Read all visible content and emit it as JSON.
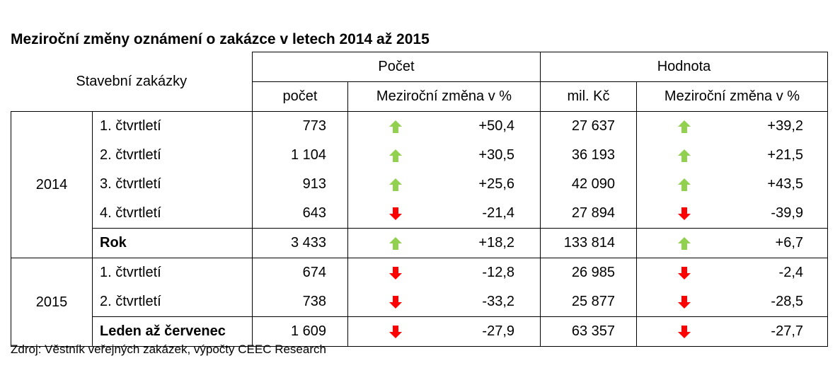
{
  "title": "Meziroční změny oznámení o zakázce v letech 2014 až 2015",
  "source": "Zdroj: Věstník veřejných zakázek, výpočty CEEC Research",
  "headers": {
    "stub": "Stavební zakázky",
    "group1": "Počet",
    "group2": "Hodnota",
    "c1": "počet",
    "c2": "Meziroční změna v %",
    "c3": "mil. Kč",
    "c4": "Meziroční změna v %"
  },
  "colors": {
    "up": "#92d050",
    "down": "#ff0000"
  },
  "years": [
    "2014",
    "2015"
  ],
  "rows": [
    {
      "label": "1. čtvrtletí",
      "count": "773",
      "count_dir": "up",
      "count_chg": "+50,4",
      "value": "27 637",
      "value_dir": "up",
      "value_chg": "+39,2"
    },
    {
      "label": "2. čtvrtletí",
      "count": "1 104",
      "count_dir": "up",
      "count_chg": "+30,5",
      "value": "36 193",
      "value_dir": "up",
      "value_chg": "+21,5"
    },
    {
      "label": "3. čtvrtletí",
      "count": "913",
      "count_dir": "up",
      "count_chg": "+25,6",
      "value": "42 090",
      "value_dir": "up",
      "value_chg": "+43,5"
    },
    {
      "label": "4. čtvrtletí",
      "count": "643",
      "count_dir": "down",
      "count_chg": "-21,4",
      "value": "27 894",
      "value_dir": "down",
      "value_chg": "-39,9"
    },
    {
      "label": "Rok",
      "count": "3 433",
      "count_dir": "up",
      "count_chg": "+18,2",
      "value": "133 814",
      "value_dir": "up",
      "value_chg": "+6,7"
    },
    {
      "label": "1. čtvrtletí",
      "count": "674",
      "count_dir": "down",
      "count_chg": "-12,8",
      "value": "26 985",
      "value_dir": "down",
      "value_chg": "-2,4"
    },
    {
      "label": "2. čtvrtletí",
      "count": "738",
      "count_dir": "down",
      "count_chg": "-33,2",
      "value": "25 877",
      "value_dir": "down",
      "value_chg": "-28,5"
    },
    {
      "label": "Leden až červenec",
      "count": "1 609",
      "count_dir": "down",
      "count_chg": "-27,9",
      "value": "63 357",
      "value_dir": "down",
      "value_chg": "-27,7"
    }
  ]
}
